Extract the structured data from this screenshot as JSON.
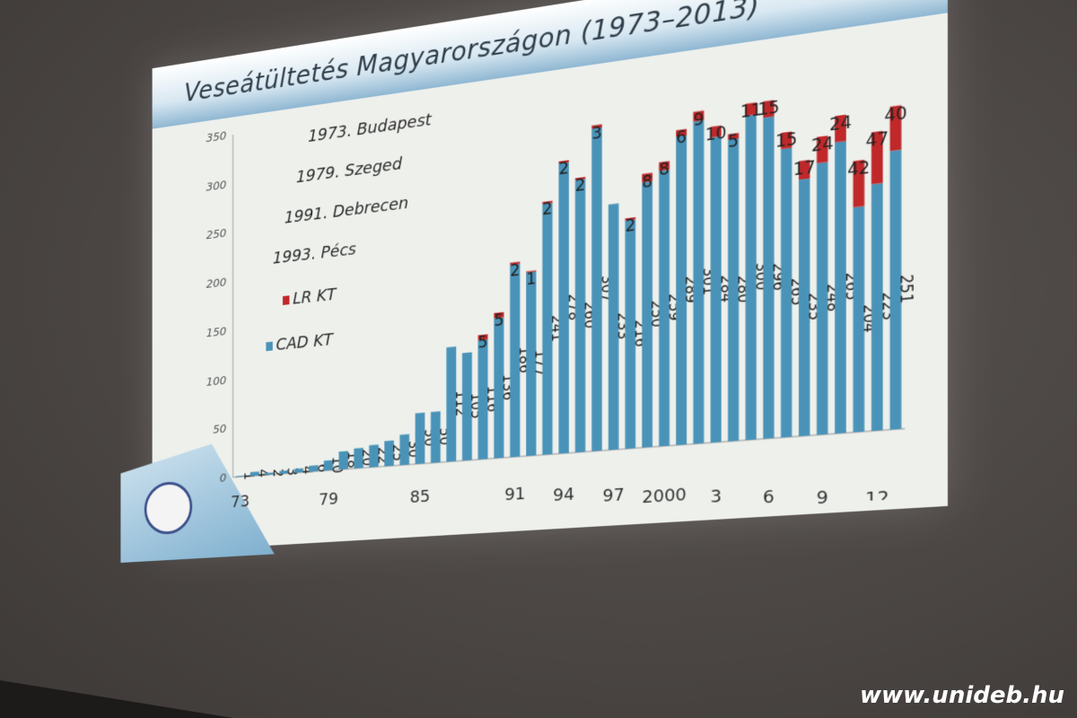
{
  "slide": {
    "title": "Veseátültetés Magyarországon (1973–2013)",
    "info_lines": [
      "1973. Budapest",
      "1979. Szeged",
      "1991. Debrecen",
      "1993. Pécs"
    ],
    "logo": "university-seal"
  },
  "watermark": "www.unideb.hu",
  "chart_data": {
    "type": "bar",
    "stacked": true,
    "title": "Veseátültetés Magyarországon (1973–2013)",
    "x": [
      1973,
      1974,
      1975,
      1976,
      1977,
      1978,
      1979,
      1980,
      1981,
      1982,
      1983,
      1984,
      1985,
      1986,
      1987,
      1988,
      1989,
      1990,
      1991,
      1992,
      1993,
      1994,
      1995,
      1996,
      1997,
      1998,
      1999,
      2000,
      2001,
      2002,
      2003,
      2004,
      2005,
      2006,
      2007,
      2008,
      2009,
      2010,
      2011,
      2012,
      2013
    ],
    "x_tick_labels": [
      "73",
      "79",
      "85",
      "91",
      "94",
      "97",
      "2000",
      "3",
      "6",
      "9",
      "12"
    ],
    "x_tick_years": [
      1973,
      1979,
      1985,
      1991,
      1994,
      1997,
      2000,
      2003,
      2006,
      2009,
      2012
    ],
    "series": [
      {
        "name": "CAD KT",
        "color": "#4a93b8",
        "values": [
          1,
          4,
          2,
          3,
          4,
          6,
          10,
          18,
          20,
          22,
          25,
          30,
          50,
          50,
          112,
          105,
          116,
          136,
          186,
          177,
          241,
          278,
          260,
          307,
          233,
          216,
          250,
          259,
          289,
          301,
          284,
          280,
          300,
          296,
          265,
          235,
          248,
          265,
          204,
          223,
          251
        ]
      },
      {
        "name": "LR KT",
        "color": "#c0282a",
        "values": [
          0,
          0,
          0,
          0,
          0,
          0,
          0,
          0,
          0,
          0,
          0,
          0,
          0,
          0,
          0,
          0,
          5,
          5,
          2,
          1,
          2,
          2,
          2,
          3,
          0,
          2,
          8,
          8,
          6,
          9,
          10,
          5,
          11,
          15,
          15,
          17,
          24,
          24,
          42,
          47,
          40
        ]
      }
    ],
    "ylim": [
      0,
      350
    ],
    "yticks": [
      0,
      50,
      100,
      150,
      200,
      250,
      300,
      350
    ],
    "legend": [
      "LR KT",
      "CAD KT"
    ],
    "legend_placement": "left",
    "grid": false
  }
}
